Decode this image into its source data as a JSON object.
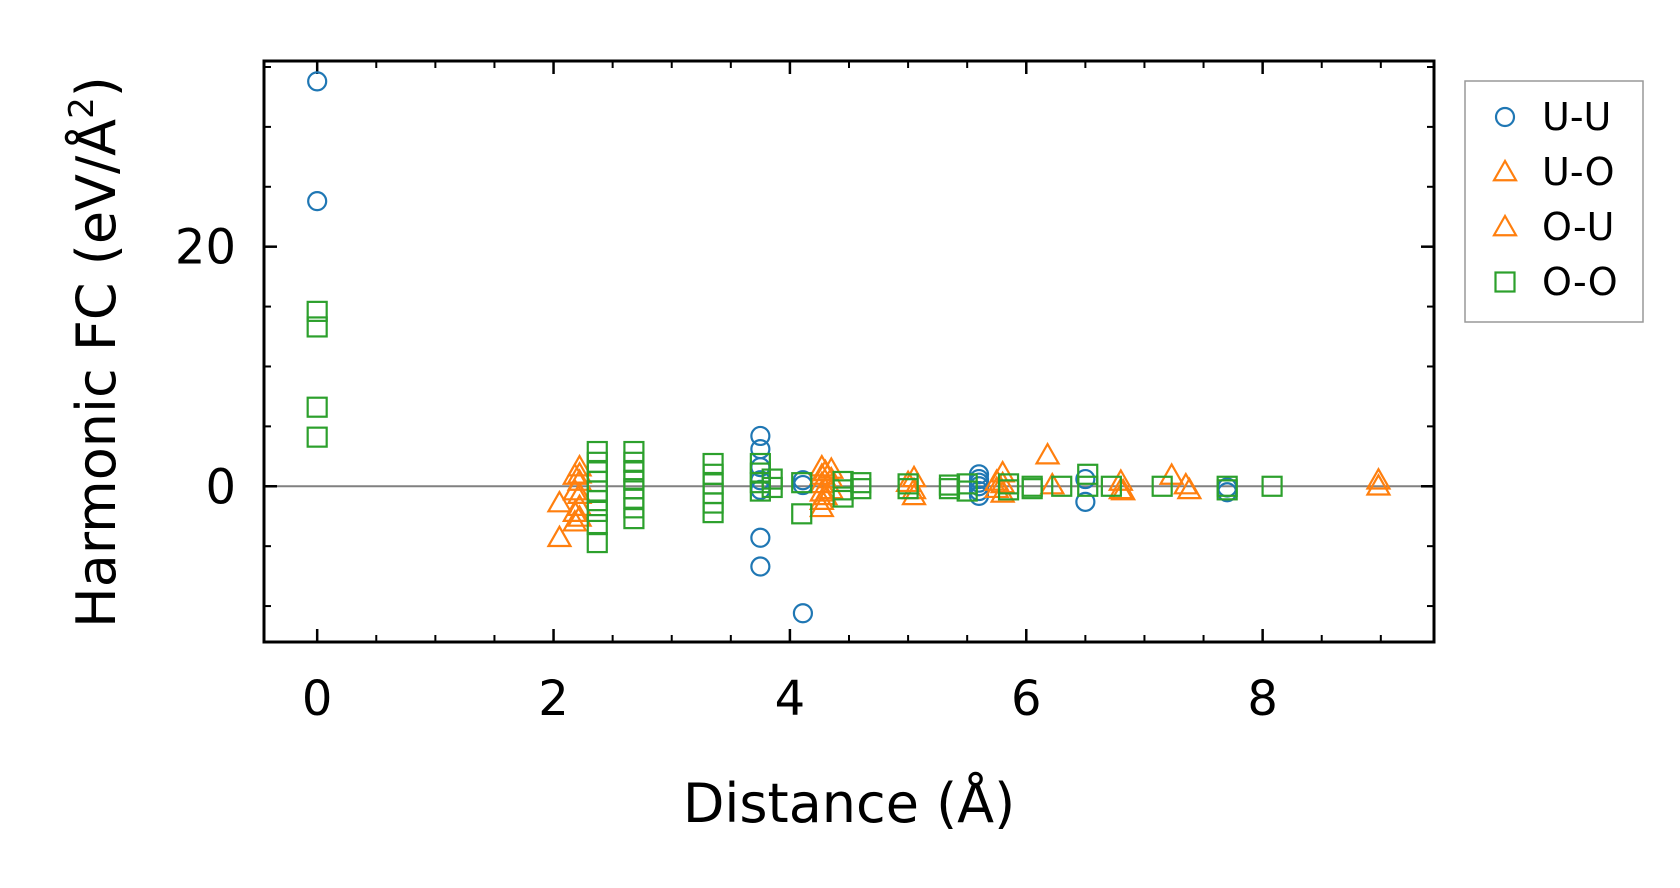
{
  "chart_data": {
    "type": "scatter",
    "title": "",
    "xlabel": "Distance (Å)",
    "ylabel_main": "Harmonic FC (eV/Å",
    "ylabel_sup": "2",
    "ylabel_close": ")",
    "xlim": [
      -0.45,
      9.45
    ],
    "ylim": [
      -13,
      35.5
    ],
    "xticks": [
      0,
      2,
      4,
      6,
      8
    ],
    "yticks": [
      0,
      20
    ],
    "xtick_labels": [
      "0",
      "2",
      "4",
      "6",
      "8"
    ],
    "ytick_labels": [
      "0",
      "20"
    ],
    "x_minor_step": 0.5,
    "y_minor_step": 5,
    "zero_line": 0,
    "legend_position": "outside-right-top",
    "colors": {
      "U-U": "#1f77b4",
      "U-O": "#ff7f0e",
      "O-U": "#ff7f0e",
      "O-O": "#2ca02c",
      "zero_line": "#808080",
      "legend_border": "#999999"
    },
    "series": [
      {
        "name": "U-U",
        "marker": "circle",
        "points": [
          [
            0,
            33.8
          ],
          [
            0,
            23.8
          ],
          [
            3.75,
            4.2
          ],
          [
            3.75,
            3.1
          ],
          [
            3.75,
            1.6
          ],
          [
            3.75,
            0.5
          ],
          [
            3.75,
            -0.3
          ],
          [
            3.75,
            -4.3
          ],
          [
            3.75,
            -6.7
          ],
          [
            4.11,
            0.5
          ],
          [
            4.11,
            0.1
          ],
          [
            4.11,
            -10.6
          ],
          [
            5.6,
            1.0
          ],
          [
            5.6,
            0.6
          ],
          [
            5.6,
            0.3
          ],
          [
            5.6,
            0.0
          ],
          [
            5.6,
            -0.4
          ],
          [
            5.6,
            -0.8
          ],
          [
            6.5,
            0.6
          ],
          [
            6.5,
            -1.3
          ],
          [
            7.7,
            -0.1
          ],
          [
            7.7,
            -0.5
          ]
        ]
      },
      {
        "name": "U-O",
        "marker": "triangle",
        "points": [
          [
            2.05,
            -1.4
          ],
          [
            2.05,
            -4.3
          ],
          [
            2.22,
            1.6
          ],
          [
            2.22,
            1.0
          ],
          [
            2.22,
            0.4
          ],
          [
            2.22,
            -0.7
          ],
          [
            2.22,
            -1.7
          ],
          [
            2.22,
            -2.6
          ],
          [
            4.27,
            1.6
          ],
          [
            4.27,
            0.9
          ],
          [
            4.27,
            0.2
          ],
          [
            4.27,
            -0.5
          ],
          [
            4.27,
            -1.2
          ],
          [
            4.27,
            -1.8
          ],
          [
            4.35,
            1.4
          ],
          [
            4.35,
            0.6
          ],
          [
            4.35,
            -0.3
          ],
          [
            5.05,
            0.7
          ],
          [
            5.05,
            -0.3
          ],
          [
            5.05,
            -0.8
          ],
          [
            5.8,
            1.1
          ],
          [
            5.8,
            0.2
          ],
          [
            5.8,
            -0.6
          ],
          [
            6.18,
            2.6
          ],
          [
            6.8,
            0.4
          ],
          [
            6.8,
            -0.3
          ],
          [
            7.23,
            0.9
          ],
          [
            7.35,
            0.1
          ],
          [
            8.98,
            0.5
          ],
          [
            8.98,
            0.0
          ]
        ]
      },
      {
        "name": "O-U",
        "marker": "triangle",
        "points": [
          [
            2.18,
            0.9
          ],
          [
            2.18,
            -0.4
          ],
          [
            2.18,
            -2.2
          ],
          [
            2.18,
            -3.0
          ],
          [
            4.3,
            1.2
          ],
          [
            4.3,
            -0.8
          ],
          [
            5.0,
            0.3
          ],
          [
            5.75,
            0.4
          ],
          [
            5.75,
            -0.2
          ],
          [
            6.22,
            0.1
          ],
          [
            6.82,
            -0.4
          ],
          [
            7.38,
            -0.3
          ]
        ]
      },
      {
        "name": "O-O",
        "marker": "square",
        "points": [
          [
            0,
            14.6
          ],
          [
            0,
            13.3
          ],
          [
            0,
            6.6
          ],
          [
            0,
            4.1
          ],
          [
            2.37,
            2.9
          ],
          [
            2.37,
            2.0
          ],
          [
            2.37,
            1.2
          ],
          [
            2.37,
            0.4
          ],
          [
            2.37,
            -0.4
          ],
          [
            2.37,
            -1.2
          ],
          [
            2.37,
            -2.1
          ],
          [
            2.37,
            -3.2
          ],
          [
            2.37,
            -4.7
          ],
          [
            2.68,
            2.9
          ],
          [
            2.68,
            2.0
          ],
          [
            2.68,
            1.2
          ],
          [
            2.68,
            0.5
          ],
          [
            2.68,
            -0.2
          ],
          [
            2.68,
            -1.0
          ],
          [
            2.68,
            -1.8
          ],
          [
            2.68,
            -2.7
          ],
          [
            3.35,
            1.9
          ],
          [
            3.35,
            1.0
          ],
          [
            3.35,
            0.2
          ],
          [
            3.35,
            -0.6
          ],
          [
            3.35,
            -1.4
          ],
          [
            3.35,
            -2.2
          ],
          [
            3.75,
            1.9
          ],
          [
            3.75,
            1.1
          ],
          [
            3.75,
            0.3
          ],
          [
            3.75,
            -0.4
          ],
          [
            3.85,
            0.6
          ],
          [
            3.85,
            -0.1
          ],
          [
            4.1,
            0.3
          ],
          [
            4.1,
            -2.3
          ],
          [
            4.45,
            0.4
          ],
          [
            4.45,
            -0.3
          ],
          [
            4.45,
            -0.9
          ],
          [
            4.6,
            0.3
          ],
          [
            4.6,
            -0.2
          ],
          [
            5.0,
            0.2
          ],
          [
            5.0,
            -0.2
          ],
          [
            5.35,
            0.1
          ],
          [
            5.35,
            -0.2
          ],
          [
            5.5,
            0.2
          ],
          [
            5.5,
            -0.4
          ],
          [
            5.85,
            0.2
          ],
          [
            5.85,
            -0.3
          ],
          [
            6.05,
            0.0
          ],
          [
            6.05,
            -0.2
          ],
          [
            6.3,
            0.0
          ],
          [
            6.52,
            1.0
          ],
          [
            6.52,
            0.0
          ],
          [
            6.72,
            0.0
          ],
          [
            7.15,
            0.0
          ],
          [
            7.7,
            0.0
          ],
          [
            7.7,
            -0.3
          ],
          [
            8.08,
            0.0
          ]
        ]
      }
    ]
  }
}
